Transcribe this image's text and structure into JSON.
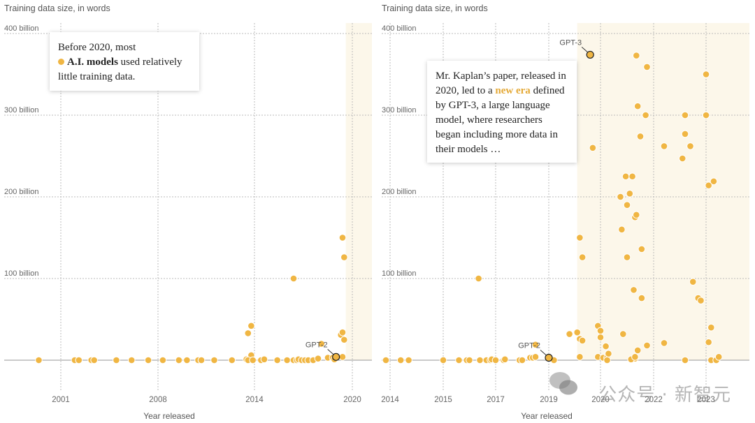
{
  "colors": {
    "dot": "#f0b643",
    "dot_stroke": "#ffffff",
    "highlight_stroke": "#222222",
    "shade": "#fcf7ea",
    "grid": "#bbbbbb",
    "baseline": "#aaaaaa"
  },
  "watermark": {
    "text": "公众号 · 新智元"
  },
  "chart_data": [
    {
      "type": "scatter",
      "title": "",
      "ylabel": "Training data size, in words",
      "xlabel": "Year released",
      "ylim": [
        0,
        400
      ],
      "y_unit": "billion words",
      "yticks": [
        {
          "value": 100,
          "label": "100 billion"
        },
        {
          "value": 200,
          "label": "200 billion"
        },
        {
          "value": 300,
          "label": "300 billion"
        },
        {
          "value": 400,
          "label": "400 billion"
        }
      ],
      "xticks": [
        {
          "value": 2001,
          "label": "2001"
        },
        {
          "value": 2008,
          "label": "2008"
        },
        {
          "value": 2014,
          "label": "2014"
        },
        {
          "value": 2020,
          "label": "2020"
        }
      ],
      "xlim": [
        1997.4,
        2021.2
      ],
      "grid": true,
      "shaded_region": {
        "from": 2019.6,
        "to": 2021.2
      },
      "annotation": {
        "lines": [
          "Before 2020, most",
          "A.I. models",
          " used relatively",
          "little training data."
        ]
      },
      "labels": [
        {
          "name": "GPT-2",
          "x": 2019.0,
          "y": 4
        }
      ],
      "points": [
        [
          1999.6,
          0
        ],
        [
          2002.0,
          0
        ],
        [
          2002.3,
          0
        ],
        [
          2003.2,
          0
        ],
        [
          2003.4,
          0
        ],
        [
          2005.0,
          0
        ],
        [
          2006.1,
          0
        ],
        [
          2007.3,
          0
        ],
        [
          2008.3,
          0
        ],
        [
          2009.3,
          0
        ],
        [
          2009.8,
          0
        ],
        [
          2010.5,
          0
        ],
        [
          2010.7,
          0
        ],
        [
          2011.5,
          0
        ],
        [
          2012.6,
          0
        ],
        [
          2013.5,
          1
        ],
        [
          2013.6,
          33
        ],
        [
          2013.8,
          42
        ],
        [
          2013.8,
          6
        ],
        [
          2013.6,
          0
        ],
        [
          2013.9,
          0
        ],
        [
          2014.4,
          0
        ],
        [
          2014.6,
          1
        ],
        [
          2015.4,
          0
        ],
        [
          2016.0,
          0
        ],
        [
          2016.4,
          100
        ],
        [
          2016.4,
          0
        ],
        [
          2016.6,
          0
        ],
        [
          2016.7,
          1
        ],
        [
          2016.9,
          0
        ],
        [
          2017.1,
          0
        ],
        [
          2017.3,
          0
        ],
        [
          2017.6,
          0
        ],
        [
          2017.9,
          2
        ],
        [
          2018.1,
          20
        ],
        [
          2018.5,
          3
        ],
        [
          2018.8,
          3
        ],
        [
          2018.9,
          1
        ],
        [
          2019.3,
          31
        ],
        [
          2019.4,
          34
        ],
        [
          2019.5,
          25
        ],
        [
          2019.4,
          150
        ],
        [
          2019.5,
          126
        ],
        [
          2019.4,
          4
        ]
      ]
    },
    {
      "type": "scatter",
      "title": "",
      "ylabel": "Training data size, in words",
      "xlabel": "Year released",
      "ylim": [
        0,
        400
      ],
      "y_unit": "billion words",
      "yticks": [
        {
          "value": 100,
          "label": "100 billion"
        },
        {
          "value": 200,
          "label": "200 billion"
        },
        {
          "value": 300,
          "label": "300 billion"
        },
        {
          "value": 400,
          "label": "400 billion"
        }
      ],
      "xticks": [
        {
          "value": 2014,
          "label": "2014"
        },
        {
          "value": 2015,
          "label": "2015"
        },
        {
          "value": 2017,
          "label": "2017"
        },
        {
          "value": 2019,
          "label": "2019"
        },
        {
          "value": 2020,
          "label": "2020"
        },
        {
          "value": 2022,
          "label": "2022"
        },
        {
          "value": 2023,
          "label": "2023"
        }
      ],
      "grid": true,
      "shaded_region": {
        "from": 2019.55,
        "to": 2023.85
      },
      "annotation": {
        "lines": [
          "Mr. Kaplan’s paper, released in 2020, led to a ",
          "new era",
          " defined by GPT-3, a large language model, where researchers began including more data in their models …"
        ]
      },
      "labels": [
        {
          "name": "GPT-3",
          "x": 2019.8,
          "y": 374
        },
        {
          "name": "GPT-2",
          "x": 2019.0,
          "y": 3
        }
      ],
      "points": [
        [
          2013.8,
          0
        ],
        [
          2014.2,
          0
        ],
        [
          2014.35,
          0
        ],
        [
          2015.0,
          0
        ],
        [
          2015.6,
          0
        ],
        [
          2015.9,
          0
        ],
        [
          2016.0,
          0
        ],
        [
          2016.35,
          100
        ],
        [
          2016.4,
          0
        ],
        [
          2016.65,
          0
        ],
        [
          2016.8,
          0
        ],
        [
          2016.85,
          1
        ],
        [
          2017.0,
          0
        ],
        [
          2017.3,
          0
        ],
        [
          2017.35,
          1
        ],
        [
          2017.9,
          0
        ],
        [
          2018.0,
          0
        ],
        [
          2018.3,
          3
        ],
        [
          2018.4,
          3
        ],
        [
          2018.5,
          4
        ],
        [
          2018.5,
          19
        ],
        [
          2019.1,
          0
        ],
        [
          2019.4,
          32
        ],
        [
          2019.55,
          34
        ],
        [
          2019.6,
          26
        ],
        [
          2019.65,
          24
        ],
        [
          2019.6,
          150
        ],
        [
          2019.65,
          126
        ],
        [
          2019.6,
          4
        ],
        [
          2019.85,
          260
        ],
        [
          2019.95,
          42
        ],
        [
          2020.0,
          36
        ],
        [
          2019.95,
          4
        ],
        [
          2020.0,
          28
        ],
        [
          2020.1,
          3
        ],
        [
          2020.2,
          17
        ],
        [
          2020.25,
          3
        ],
        [
          2020.3,
          8
        ],
        [
          2020.25,
          0
        ],
        [
          2020.75,
          200
        ],
        [
          2020.8,
          160
        ],
        [
          2020.85,
          32
        ],
        [
          2020.95,
          225
        ],
        [
          2021.0,
          190
        ],
        [
          2021.1,
          204
        ],
        [
          2021.0,
          126
        ],
        [
          2021.2,
          225
        ],
        [
          2021.25,
          86
        ],
        [
          2021.3,
          175
        ],
        [
          2021.35,
          178
        ],
        [
          2021.3,
          2
        ],
        [
          2021.15,
          1
        ],
        [
          2021.3,
          4
        ],
        [
          2021.4,
          311
        ],
        [
          2021.4,
          12
        ],
        [
          2021.5,
          274
        ],
        [
          2021.55,
          136
        ],
        [
          2021.55,
          76
        ],
        [
          2021.7,
          300
        ],
        [
          2021.75,
          359
        ],
        [
          2021.75,
          18
        ],
        [
          2021.35,
          373
        ],
        [
          2022.2,
          262
        ],
        [
          2022.2,
          21
        ],
        [
          2022.55,
          247
        ],
        [
          2022.6,
          277
        ],
        [
          2022.7,
          262
        ],
        [
          2022.6,
          300
        ],
        [
          2022.6,
          0
        ],
        [
          2022.75,
          96
        ],
        [
          2022.85,
          76
        ],
        [
          2022.9,
          73
        ],
        [
          2023.0,
          350
        ],
        [
          2023.0,
          300
        ],
        [
          2023.05,
          214
        ],
        [
          2023.15,
          219
        ],
        [
          2023.1,
          40
        ],
        [
          2023.05,
          22
        ],
        [
          2023.1,
          0
        ],
        [
          2023.2,
          0
        ],
        [
          2023.25,
          4
        ]
      ]
    }
  ]
}
